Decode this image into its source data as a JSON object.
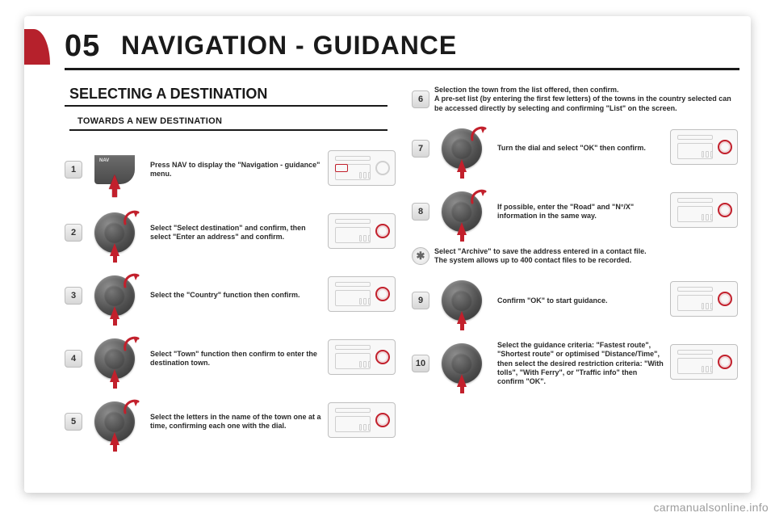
{
  "colors": {
    "accent_red": "#c2202c",
    "text": "#1a1a1a",
    "muted": "#7a7a7a",
    "panel_border": "#bfbfbf",
    "bg": "#ffffff"
  },
  "header": {
    "number": "05",
    "title": "NAVIGATION - GUIDANCE"
  },
  "section": {
    "title": "SELECTING A DESTINATION",
    "subtitle": "TOWARDS A NEW DESTINATION"
  },
  "left_steps": [
    {
      "n": "1",
      "kind": "nav",
      "text": "Press NAV to display the \"Navigation - guidance\" menu.",
      "unit_highlight": "nav"
    },
    {
      "n": "2",
      "kind": "dial",
      "curve": true,
      "text": "Select \"Select destination\" and confirm, then select \"Enter an address\" and confirm.",
      "unit_highlight": "knob"
    },
    {
      "n": "3",
      "kind": "dial",
      "curve": true,
      "text": "Select the \"Country\" function then confirm.",
      "unit_highlight": "knob"
    },
    {
      "n": "4",
      "kind": "dial",
      "curve": true,
      "text": "Select \"Town\" function then confirm to enter the destination town.",
      "unit_highlight": "knob"
    },
    {
      "n": "5",
      "kind": "dial",
      "curve": true,
      "text": "Select the letters in the name of the town one at a time, confirming each one with the dial.",
      "unit_highlight": "knob"
    }
  ],
  "right_steps": [
    {
      "n": "6",
      "kind": "note",
      "text": "Selection the town from the list offered, then confirm.\nA pre-set list (by entering the first few letters) of the towns in the country selected can be accessed directly by selecting and confirming \"List\" on the screen."
    },
    {
      "n": "7",
      "kind": "dial",
      "curve": true,
      "text": "Turn the dial and select \"OK\" then confirm.",
      "unit_highlight": "knob"
    },
    {
      "n": "8",
      "kind": "dial",
      "curve": true,
      "text": "If possible, enter the \"Road\" and \"N°/X\" information in the same way.",
      "unit_highlight": "knob"
    },
    {
      "n": "*",
      "kind": "tip",
      "text": "Select \"Archive\" to save the address entered in a contact file.\nThe system allows up to 400 contact files to be recorded."
    },
    {
      "n": "9",
      "kind": "dial",
      "curve": false,
      "text": "Confirm \"OK\" to start guidance.",
      "unit_highlight": "knob"
    },
    {
      "n": "10",
      "kind": "dial",
      "curve": false,
      "text": "Select the guidance criteria: \"Fastest route\", \"Shortest route\" or optimised \"Distance/Time\", then select the desired restriction criteria: \"With tolls\", \"With Ferry\", or \"Traffic info\" then confirm \"OK\".",
      "unit_highlight": "knob"
    }
  ],
  "watermark": "carmanualsonline.info"
}
